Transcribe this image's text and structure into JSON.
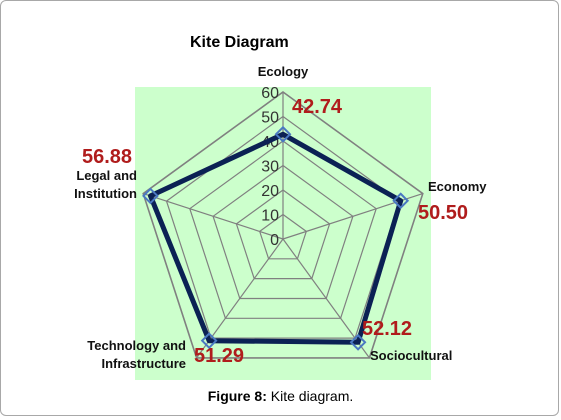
{
  "chart_data": {
    "type": "radar",
    "title": "Kite Diagram",
    "axes": [
      "Ecology",
      "Economy",
      "Sociocultural",
      "Technology and Infrastructure",
      "Legal and Institution"
    ],
    "axis_label_lines": [
      [
        "Ecology"
      ],
      [
        "Economy"
      ],
      [
        "Sociocultural"
      ],
      [
        "Technology and",
        "Infrastructure"
      ],
      [
        "Legal and",
        "Institution"
      ]
    ],
    "values": [
      42.74,
      50.5,
      52.12,
      51.29,
      56.88
    ],
    "value_labels": [
      "42.74",
      "50.50",
      "52.12",
      "51.29",
      "56.88"
    ],
    "ticks": [
      0,
      10,
      20,
      30,
      40,
      50,
      60
    ],
    "range": [
      0,
      60
    ],
    "grid": true,
    "colors": {
      "plot_bg": "#ccffcc",
      "grid": "#808080",
      "series": "#0b2154",
      "marker": "#4a78c2",
      "value_label": "#b01c1c"
    }
  },
  "caption": {
    "label": "Figure 8:",
    "text": " Kite diagram."
  }
}
